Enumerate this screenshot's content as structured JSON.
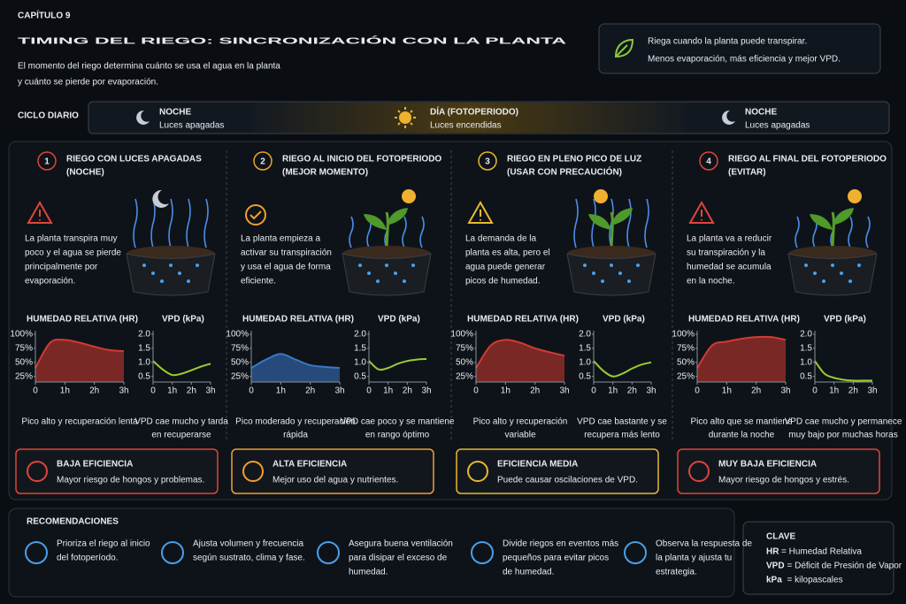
{
  "header": {
    "chapter": "CAPÍTULO 9",
    "title": "TIMING DEL RIEGO: SINCRONIZACIÓN CON LA PLANTA",
    "subtitle": [
      "El momento del riego determina cuánto se usa el agua en la planta",
      "y cuánto se pierde por evaporación."
    ]
  },
  "tip": [
    "Riega cuando la planta puede transpirar.",
    "Menos evaporación, más eficiencia y mejor VPD."
  ],
  "cycle": {
    "label": "CICLO DIARIO",
    "segments": [
      {
        "title": "NOCHE",
        "subtitle": "Luces apagadas"
      },
      {
        "title": "DÍA (FOTOPERIODO)",
        "subtitle": "Luces encendidas"
      },
      {
        "title": "NOCHE",
        "subtitle": "Luces apagadas"
      }
    ]
  },
  "scenarios": [
    {
      "number": "1",
      "title": "RIEGO CON LUCES APAGADAS",
      "subtitle": "(NOCHE)",
      "color": "#e0453a",
      "description": [
        "La planta transpira muy",
        "poco y el agua se pierde",
        "principalmente por",
        "evaporación."
      ],
      "rating": {
        "title": "BAJA EFICIENCIA",
        "text": "Mayor riesgo de hongos y problemas."
      }
    },
    {
      "number": "2",
      "title": "RIEGO AL INICIO DEL FOTOPERIODO",
      "subtitle": "(MEJOR MOMENTO)",
      "color": "#f0a030",
      "description": [
        "La planta empieza a",
        "activar su transpiración",
        "y usa el agua de forma",
        "eficiente."
      ],
      "rating": {
        "title": "ALTA EFICIENCIA",
        "text": "Mejor uso del agua y nutrientes."
      }
    },
    {
      "number": "3",
      "title": "RIEGO EN PLENO PICO DE LUZ",
      "subtitle": "(USAR CON PRECAUCIÓN)",
      "color": "#e8b830",
      "description": [
        "La demanda de la",
        "planta es alta, pero el",
        "agua puede generar",
        "picos de humedad."
      ],
      "rating": {
        "title": "EFICIENCIA MEDIA",
        "text": "Puede causar oscilaciones de VPD."
      }
    },
    {
      "number": "4",
      "title": "RIEGO AL FINAL DEL FOTOPERIODO",
      "subtitle": "(EVITAR)",
      "color": "#e0453a",
      "description": [
        "La planta va a reducir",
        "su transpiración y la",
        "humedad se acumula",
        "en la noche."
      ],
      "rating": {
        "title": "MUY BAJA EFICIENCIA",
        "text": "Mayor riesgo de hongos y estrés."
      }
    }
  ],
  "chart_data": [
    {
      "type": "line",
      "title": "HUMEDAD RELATIVA (HR)",
      "fill": true,
      "x": [
        0,
        0.5,
        1,
        1.5,
        2,
        2.5,
        3
      ],
      "series": [
        {
          "color": "#d23a32",
          "values": [
            40,
            85,
            90,
            85,
            78,
            72,
            70
          ]
        }
      ],
      "xlim": [
        0,
        3
      ],
      "ylim": [
        15,
        100
      ],
      "xticks": [
        0,
        {
          "value": 1,
          "label": "1h"
        },
        {
          "value": 2,
          "label": "2h"
        },
        {
          "value": 3,
          "label": "3h"
        }
      ],
      "yticks": [
        {
          "value": 25,
          "label": "25%"
        },
        {
          "value": 50,
          "label": "50%"
        },
        {
          "value": 75,
          "label": "75%"
        },
        {
          "value": 100,
          "label": "100%"
        }
      ],
      "caption": [
        "Pico alto y recuperación lenta"
      ]
    },
    {
      "type": "line",
      "title": "VPD (kPa)",
      "fill": false,
      "x": [
        0,
        0.5,
        1,
        1.5,
        2,
        2.5,
        3
      ],
      "series": [
        {
          "color": "#9acd32",
          "values": [
            1.05,
            0.75,
            0.55,
            0.6,
            0.72,
            0.85,
            0.95
          ]
        }
      ],
      "xlim": [
        0,
        3
      ],
      "ylim": [
        0.3,
        2.0
      ],
      "xticks": [
        0,
        {
          "value": 1,
          "label": "1h"
        },
        {
          "value": 2,
          "label": "2h"
        },
        {
          "value": 3,
          "label": "3h"
        }
      ],
      "yticks": [
        0.5,
        {
          "value": 1,
          "label": "1.0"
        },
        1.5,
        {
          "value": 2,
          "label": "2.0"
        }
      ],
      "caption": [
        "VPD cae mucho y tarda",
        "en recuperarse"
      ]
    },
    {
      "type": "line",
      "title": "HUMEDAD RELATIVA (HR)",
      "fill": true,
      "x": [
        0,
        0.5,
        1,
        1.5,
        2,
        2.5,
        3
      ],
      "series": [
        {
          "color": "#3a78c8",
          "values": [
            40,
            55,
            65,
            55,
            45,
            42,
            40
          ]
        }
      ],
      "xlim": [
        0,
        3
      ],
      "ylim": [
        15,
        100
      ],
      "xticks": [
        0,
        {
          "value": 1,
          "label": "1h"
        },
        {
          "value": 2,
          "label": "2h"
        },
        {
          "value": 3,
          "label": "3h"
        }
      ],
      "yticks": [
        {
          "value": 25,
          "label": "25%"
        },
        {
          "value": 50,
          "label": "50%"
        },
        {
          "value": 75,
          "label": "75%"
        },
        {
          "value": 100,
          "label": "100%"
        }
      ],
      "caption": [
        "Pico moderado y recuperación",
        "rápida"
      ]
    },
    {
      "type": "line",
      "title": "VPD (kPa)",
      "fill": false,
      "x": [
        0,
        0.5,
        1,
        1.5,
        2,
        2.5,
        3
      ],
      "series": [
        {
          "color": "#9acd32",
          "values": [
            1.05,
            0.75,
            0.8,
            0.95,
            1.05,
            1.1,
            1.12
          ]
        }
      ],
      "xlim": [
        0,
        3
      ],
      "ylim": [
        0.3,
        2.0
      ],
      "xticks": [
        0,
        {
          "value": 1,
          "label": "1h"
        },
        {
          "value": 2,
          "label": "2h"
        },
        {
          "value": 3,
          "label": "3h"
        }
      ],
      "yticks": [
        0.5,
        {
          "value": 1,
          "label": "1.0"
        },
        1.5,
        {
          "value": 2,
          "label": "2.0"
        }
      ],
      "caption": [
        "VPD cae poco y se mantiene",
        "en rango óptimo"
      ]
    },
    {
      "type": "line",
      "title": "HUMEDAD RELATIVA (HR)",
      "fill": true,
      "x": [
        0,
        0.5,
        1,
        1.5,
        2,
        2.5,
        3
      ],
      "series": [
        {
          "color": "#d23a32",
          "values": [
            40,
            80,
            90,
            85,
            75,
            68,
            62
          ]
        }
      ],
      "xlim": [
        0,
        3
      ],
      "ylim": [
        15,
        100
      ],
      "xticks": [
        0,
        {
          "value": 1,
          "label": "1h"
        },
        {
          "value": 2,
          "label": "2h"
        },
        {
          "value": 3,
          "label": "3h"
        }
      ],
      "yticks": [
        {
          "value": 25,
          "label": "25%"
        },
        {
          "value": 50,
          "label": "50%"
        },
        {
          "value": 75,
          "label": "75%"
        },
        {
          "value": 100,
          "label": "100%"
        }
      ],
      "caption": [
        "Pico alto y recuperación",
        "variable"
      ]
    },
    {
      "type": "line",
      "title": "VPD (kPa)",
      "fill": false,
      "x": [
        0,
        0.5,
        1,
        1.5,
        2,
        2.5,
        3
      ],
      "series": [
        {
          "color": "#9acd32",
          "values": [
            1.05,
            0.7,
            0.5,
            0.6,
            0.78,
            0.92,
            1.0
          ]
        }
      ],
      "xlim": [
        0,
        3
      ],
      "ylim": [
        0.3,
        2.0
      ],
      "xticks": [
        0,
        {
          "value": 1,
          "label": "1h"
        },
        {
          "value": 2,
          "label": "2h"
        },
        {
          "value": 3,
          "label": "3h"
        }
      ],
      "yticks": [
        0.5,
        {
          "value": 1,
          "label": "1.0"
        },
        1.5,
        {
          "value": 2,
          "label": "2.0"
        }
      ],
      "caption": [
        "VPD cae bastante y se",
        "recupera más lento"
      ]
    },
    {
      "type": "line",
      "title": "HUMEDAD RELATIVA (HR)",
      "fill": true,
      "x": [
        0,
        0.5,
        1,
        1.5,
        2,
        2.5,
        3
      ],
      "series": [
        {
          "color": "#d23a32",
          "values": [
            40,
            80,
            87,
            92,
            95,
            95,
            90
          ]
        }
      ],
      "xlim": [
        0,
        3
      ],
      "ylim": [
        15,
        100
      ],
      "xticks": [
        0,
        {
          "value": 1,
          "label": "1h"
        },
        {
          "value": 2,
          "label": "2h"
        },
        {
          "value": 3,
          "label": "3h"
        }
      ],
      "yticks": [
        {
          "value": 25,
          "label": "25%"
        },
        {
          "value": 50,
          "label": "50%"
        },
        {
          "value": 75,
          "label": "75%"
        },
        {
          "value": 100,
          "label": "100%"
        }
      ],
      "caption": [
        "Pico alto que se mantiene",
        "durante la noche"
      ]
    },
    {
      "type": "line",
      "title": "VPD (kPa)",
      "fill": false,
      "x": [
        0,
        0.5,
        1,
        1.5,
        2,
        2.5,
        3
      ],
      "series": [
        {
          "color": "#9acd32",
          "values": [
            1.05,
            0.6,
            0.45,
            0.38,
            0.35,
            0.35,
            0.35
          ]
        }
      ],
      "xlim": [
        0,
        3
      ],
      "ylim": [
        0.3,
        2.0
      ],
      "xticks": [
        0,
        {
          "value": 1,
          "label": "1h"
        },
        {
          "value": 2,
          "label": "2h"
        },
        {
          "value": 3,
          "label": "3h"
        }
      ],
      "yticks": [
        0.5,
        {
          "value": 1,
          "label": "1.0"
        },
        1.5,
        {
          "value": 2,
          "label": "2.0"
        }
      ],
      "caption": [
        "VPD cae mucho y permanece",
        "muy bajo por muchas horas"
      ]
    }
  ],
  "recommendations": {
    "title": "RECOMENDACIONES",
    "items": [
      [
        "Prioriza el riego al inicio",
        "del fotoperíodo."
      ],
      [
        "Ajusta volumen y frecuencia",
        "según sustrato, clima y fase."
      ],
      [
        "Asegura buena ventilación",
        "para disipar el exceso de",
        "humedad."
      ],
      [
        "Divide riegos en eventos más",
        "pequeños para evitar picos",
        "de humedad."
      ],
      [
        "Observa la respuesta de",
        "la planta y ajusta tu",
        "estrategia."
      ]
    ]
  },
  "key": {
    "title": "CLAVE",
    "items": [
      {
        "abbr": "HR",
        "text": "= Humedad Relativa"
      },
      {
        "abbr": "VPD",
        "text": "= Déficit de Presión de Vapor"
      },
      {
        "abbr": "kPa",
        "text": "= kilopascales"
      }
    ]
  }
}
